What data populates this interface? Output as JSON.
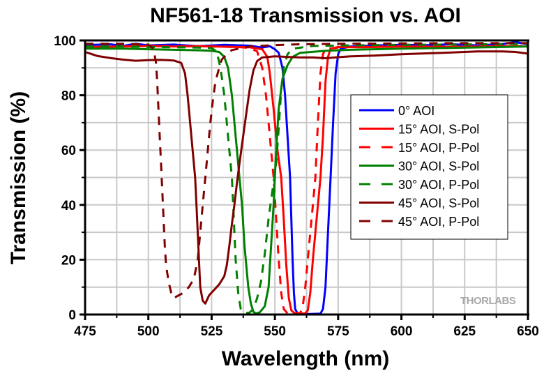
{
  "chart_data": {
    "type": "line",
    "title": "NF561-18 Transmission vs. AOI",
    "xlabel": "Wavelength (nm)",
    "ylabel": "Transmission (%)",
    "xlim": [
      475,
      650
    ],
    "ylim": [
      0,
      100
    ],
    "x_ticks": [
      475,
      500,
      525,
      550,
      575,
      600,
      625,
      650
    ],
    "y_ticks": [
      0,
      20,
      40,
      60,
      80,
      100
    ],
    "x_tick_labels": [
      "475",
      "500",
      "525",
      "550",
      "575",
      "600",
      "625",
      "650"
    ],
    "y_tick_labels": [
      "0",
      "20",
      "40",
      "60",
      "80",
      "100"
    ],
    "grid": true,
    "legend_position": "right",
    "watermark": "THORLABS",
    "series": [
      {
        "name": "0° AOI",
        "color": "#0000ff",
        "style": "solid",
        "points": [
          [
            475,
            98.3
          ],
          [
            485,
            98.6
          ],
          [
            490,
            98.0
          ],
          [
            495,
            98.8
          ],
          [
            500,
            98.2
          ],
          [
            510,
            98.5
          ],
          [
            520,
            97.9
          ],
          [
            530,
            98.4
          ],
          [
            540,
            98.1
          ],
          [
            545,
            97.4
          ],
          [
            548,
            97.9
          ],
          [
            550,
            96.8
          ],
          [
            551.5,
            95.5
          ],
          [
            553,
            90
          ],
          [
            554,
            80
          ],
          [
            555,
            65
          ],
          [
            556,
            50
          ],
          [
            557,
            20
          ],
          [
            557.5,
            8
          ],
          [
            558,
            2
          ],
          [
            559,
            0.3
          ],
          [
            564,
            0.2
          ],
          [
            568,
            0.3
          ],
          [
            569,
            2
          ],
          [
            570,
            10
          ],
          [
            571,
            30
          ],
          [
            572,
            50
          ],
          [
            573,
            70
          ],
          [
            574,
            88
          ],
          [
            575,
            95
          ],
          [
            576,
            97
          ],
          [
            580,
            97.8
          ],
          [
            590,
            98.2
          ],
          [
            600,
            98.4
          ],
          [
            610,
            98.3
          ],
          [
            620,
            98.6
          ],
          [
            630,
            98.2
          ],
          [
            640,
            98.7
          ],
          [
            645,
            99.4
          ],
          [
            650,
            98.6
          ]
        ]
      },
      {
        "name": "15° AOI, S-Pol",
        "color": "#ff0000",
        "style": "solid",
        "points": [
          [
            475,
            97.6
          ],
          [
            490,
            97.8
          ],
          [
            500,
            98.0
          ],
          [
            510,
            97.8
          ],
          [
            520,
            97.9
          ],
          [
            530,
            97.7
          ],
          [
            540,
            97.5
          ],
          [
            545,
            96.8
          ],
          [
            547,
            94
          ],
          [
            548,
            88
          ],
          [
            549.5,
            75
          ],
          [
            551,
            60
          ],
          [
            552.5,
            50
          ],
          [
            553.5,
            35
          ],
          [
            554.5,
            18
          ],
          [
            555.5,
            6
          ],
          [
            556.5,
            1.5
          ],
          [
            558,
            0.3
          ],
          [
            562,
            0.4
          ],
          [
            563,
            1.5
          ],
          [
            564,
            8
          ],
          [
            565,
            20
          ],
          [
            566.5,
            35
          ],
          [
            568,
            50
          ],
          [
            569,
            65
          ],
          [
            570,
            85
          ],
          [
            571,
            94
          ],
          [
            572,
            97
          ],
          [
            575,
            97.6
          ],
          [
            585,
            97.5
          ],
          [
            600,
            97.8
          ],
          [
            620,
            97.6
          ],
          [
            640,
            97.9
          ],
          [
            650,
            97.8
          ]
        ]
      },
      {
        "name": "15° AOI, P-Pol",
        "color": "#ff0000",
        "style": "dashed",
        "points": [
          [
            475,
            97.8
          ],
          [
            490,
            97.9
          ],
          [
            500,
            98.0
          ],
          [
            520,
            97.9
          ],
          [
            535,
            97.6
          ],
          [
            540,
            97.3
          ],
          [
            543,
            96
          ],
          [
            545,
            90
          ],
          [
            546.5,
            80
          ],
          [
            548,
            65
          ],
          [
            549.5,
            50
          ],
          [
            550.5,
            35
          ],
          [
            551.5,
            20
          ],
          [
            552.5,
            8
          ],
          [
            553.5,
            2
          ],
          [
            555,
            0.4
          ],
          [
            560,
            0.5
          ],
          [
            561,
            3
          ],
          [
            562,
            10
          ],
          [
            563.5,
            25
          ],
          [
            565,
            40
          ],
          [
            566,
            50
          ],
          [
            567,
            70
          ],
          [
            568,
            88
          ],
          [
            569,
            95
          ],
          [
            570,
            97
          ],
          [
            580,
            97.6
          ],
          [
            600,
            97.9
          ],
          [
            620,
            97.7
          ],
          [
            650,
            98.0
          ]
        ]
      },
      {
        "name": "30° AOI, S-Pol",
        "color": "#008000",
        "style": "solid",
        "points": [
          [
            475,
            97.0
          ],
          [
            490,
            97.0
          ],
          [
            500,
            96.8
          ],
          [
            510,
            96.6
          ],
          [
            520,
            96.4
          ],
          [
            525,
            96.2
          ],
          [
            528,
            95.8
          ],
          [
            530,
            94
          ],
          [
            531.5,
            90
          ],
          [
            533,
            80
          ],
          [
            534.5,
            65
          ],
          [
            536,
            50
          ],
          [
            537,
            40
          ],
          [
            538,
            25
          ],
          [
            539.5,
            10
          ],
          [
            540.5,
            4
          ],
          [
            541.5,
            1
          ],
          [
            542.5,
            0.4
          ],
          [
            544,
            0.8
          ],
          [
            546,
            3
          ],
          [
            547.5,
            10
          ],
          [
            548.5,
            25
          ],
          [
            549.5,
            40
          ],
          [
            550,
            50
          ],
          [
            550.5,
            60
          ],
          [
            551.5,
            75
          ],
          [
            553,
            86
          ],
          [
            555,
            91
          ],
          [
            557,
            94
          ],
          [
            560,
            95.5
          ],
          [
            570,
            96.2
          ],
          [
            580,
            96.6
          ],
          [
            600,
            97.0
          ],
          [
            620,
            97.3
          ],
          [
            640,
            97.6
          ],
          [
            650,
            97.8
          ]
        ]
      },
      {
        "name": "30° AOI, P-Pol",
        "color": "#008000",
        "style": "dashed",
        "points": [
          [
            475,
            97.8
          ],
          [
            490,
            97.8
          ],
          [
            500,
            97.6
          ],
          [
            510,
            97.5
          ],
          [
            520,
            97.4
          ],
          [
            525,
            97.2
          ],
          [
            527,
            96
          ],
          [
            528.5,
            90
          ],
          [
            530,
            80
          ],
          [
            531,
            70
          ],
          [
            532,
            60
          ],
          [
            533,
            50
          ],
          [
            533.5,
            40
          ],
          [
            534,
            30
          ],
          [
            534.5,
            20
          ],
          [
            535.5,
            8
          ],
          [
            536.5,
            2
          ],
          [
            538,
            0.5
          ],
          [
            540,
            0.7
          ],
          [
            541.5,
            2
          ],
          [
            543,
            6
          ],
          [
            544.5,
            12
          ],
          [
            546,
            22
          ],
          [
            547.5,
            35
          ],
          [
            549,
            45
          ],
          [
            550.5,
            55
          ],
          [
            551.5,
            68
          ],
          [
            552.5,
            82
          ],
          [
            553.5,
            90
          ],
          [
            555,
            95
          ],
          [
            557,
            97
          ],
          [
            565,
            98
          ],
          [
            580,
            98.2
          ],
          [
            600,
            98.4
          ],
          [
            620,
            98.5
          ],
          [
            640,
            98.7
          ],
          [
            650,
            98.8
          ]
        ]
      },
      {
        "name": "45° AOI, S-Pol",
        "color": "#800000",
        "style": "solid",
        "points": [
          [
            475,
            95.8
          ],
          [
            480,
            94.3
          ],
          [
            485,
            93.6
          ],
          [
            490,
            93.0
          ],
          [
            495,
            92.6
          ],
          [
            500,
            92.8
          ],
          [
            505,
            92.9
          ],
          [
            510,
            92.7
          ],
          [
            513,
            91.8
          ],
          [
            514.5,
            88
          ],
          [
            515.5,
            80
          ],
          [
            516.5,
            70
          ],
          [
            517.5,
            60
          ],
          [
            518.5,
            50
          ],
          [
            519,
            40
          ],
          [
            519.5,
            30
          ],
          [
            520,
            20
          ],
          [
            520.5,
            10
          ],
          [
            521.5,
            5
          ],
          [
            522.5,
            4
          ],
          [
            524,
            7
          ],
          [
            526,
            9
          ],
          [
            528,
            11
          ],
          [
            530,
            14
          ],
          [
            531,
            18
          ],
          [
            532,
            25
          ],
          [
            533,
            33
          ],
          [
            534,
            40
          ],
          [
            535,
            48
          ],
          [
            536,
            55
          ],
          [
            537,
            62
          ],
          [
            538.5,
            72
          ],
          [
            540,
            82
          ],
          [
            541.5,
            89
          ],
          [
            543,
            92.5
          ],
          [
            545,
            93.8
          ],
          [
            550,
            94.2
          ],
          [
            555,
            94.0
          ],
          [
            560,
            93.8
          ],
          [
            565,
            93.8
          ],
          [
            570,
            93.5
          ],
          [
            575,
            93.9
          ],
          [
            580,
            94.2
          ],
          [
            590,
            94.5
          ],
          [
            600,
            95.0
          ],
          [
            610,
            95.3
          ],
          [
            620,
            95.6
          ],
          [
            630,
            96.0
          ],
          [
            640,
            96.0
          ],
          [
            645,
            95.8
          ],
          [
            650,
            95.2
          ]
        ]
      },
      {
        "name": "45° AOI, P-Pol",
        "color": "#800000",
        "style": "dashed",
        "points": [
          [
            475,
            98.8
          ],
          [
            490,
            98.8
          ],
          [
            500,
            98.5
          ],
          [
            502,
            97
          ],
          [
            503,
            92
          ],
          [
            503.5,
            85
          ],
          [
            504,
            75
          ],
          [
            504.5,
            65
          ],
          [
            505,
            55
          ],
          [
            505.5,
            45
          ],
          [
            506,
            35
          ],
          [
            506.5,
            25
          ],
          [
            507,
            18
          ],
          [
            508,
            12
          ],
          [
            509,
            8
          ],
          [
            510,
            6
          ],
          [
            512,
            7
          ],
          [
            514,
            8
          ],
          [
            516,
            10
          ],
          [
            518,
            13
          ],
          [
            519.5,
            20
          ],
          [
            520.5,
            30
          ],
          [
            521.5,
            40
          ],
          [
            522.5,
            50
          ],
          [
            523.5,
            60
          ],
          [
            524.5,
            70
          ],
          [
            525.5,
            78
          ],
          [
            526.5,
            85
          ],
          [
            528,
            90
          ],
          [
            529,
            93
          ],
          [
            531,
            95
          ],
          [
            533,
            96.5
          ],
          [
            540,
            97.8
          ],
          [
            550,
            98.3
          ],
          [
            560,
            98.6
          ],
          [
            580,
            98.8
          ],
          [
            600,
            98.9
          ],
          [
            620,
            99.0
          ],
          [
            650,
            99.0
          ]
        ]
      }
    ]
  }
}
